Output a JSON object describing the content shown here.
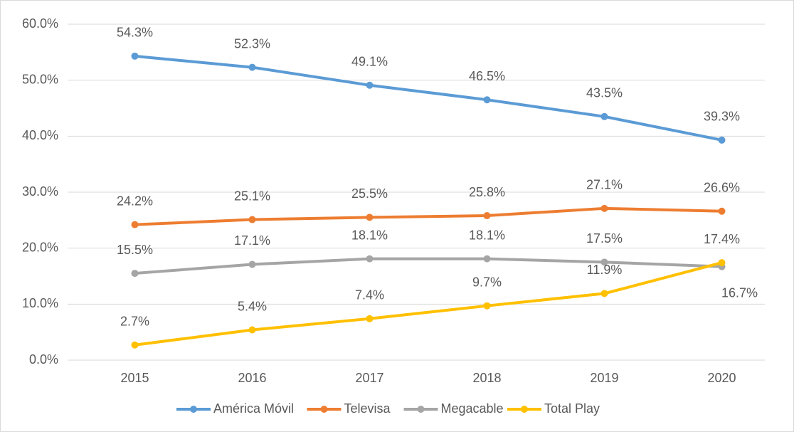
{
  "chart_data": {
    "type": "line",
    "categories": [
      "2015",
      "2016",
      "2017",
      "2018",
      "2019",
      "2020"
    ],
    "series": [
      {
        "name": "América Móvil",
        "color": "#5b9bd5",
        "values": [
          54.3,
          52.3,
          49.1,
          46.5,
          43.5,
          39.3
        ],
        "value_labels": [
          "54.3%",
          "52.3%",
          "49.1%",
          "46.5%",
          "43.5%",
          "39.3%"
        ]
      },
      {
        "name": "Televisa",
        "color": "#ed7d31",
        "values": [
          24.2,
          25.1,
          25.5,
          25.8,
          27.1,
          26.6
        ],
        "value_labels": [
          "24.2%",
          "25.1%",
          "25.5%",
          "25.8%",
          "27.1%",
          "26.6%"
        ]
      },
      {
        "name": "Megacable",
        "color": "#a5a5a5",
        "values": [
          15.5,
          17.1,
          18.1,
          18.1,
          17.5,
          16.7
        ],
        "value_labels": [
          "15.5%",
          "17.1%",
          "18.1%",
          "18.1%",
          "17.5%",
          "16.7%"
        ]
      },
      {
        "name": "Total Play",
        "color": "#ffc000",
        "values": [
          2.7,
          5.4,
          7.4,
          9.7,
          11.9,
          17.4
        ],
        "value_labels": [
          "2.7%",
          "5.4%",
          "7.4%",
          "9.7%",
          "11.9%",
          "17.4%"
        ]
      }
    ],
    "ylim": [
      0,
      60
    ],
    "yticks": [
      {
        "value": 0,
        "label": "0.0%"
      },
      {
        "value": 10,
        "label": "10.0%"
      },
      {
        "value": 20,
        "label": "20.0%"
      },
      {
        "value": 30,
        "label": "30.0%"
      },
      {
        "value": 40,
        "label": "40.0%"
      },
      {
        "value": 50,
        "label": "50.0%"
      },
      {
        "value": 60,
        "label": "60.0%"
      }
    ],
    "grid": true,
    "legend": "bottom"
  }
}
